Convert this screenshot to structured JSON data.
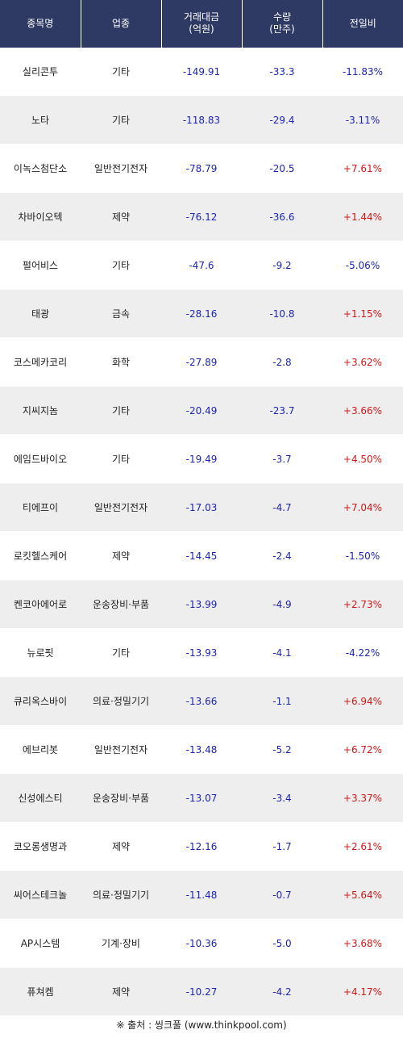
{
  "header": {
    "col_name": "종목명",
    "col_sector": "업종",
    "col_amount_line1": "거래대금",
    "col_amount_line2": "(억원)",
    "col_volume_line1": "수량",
    "col_volume_line2": "(만주)",
    "col_change": "전일비"
  },
  "rows": [
    {
      "name": "실리콘투",
      "sector": "기타",
      "amount": "-149.91",
      "volume": "-33.3",
      "change": "-11.83%",
      "direction": "down"
    },
    {
      "name": "노타",
      "sector": "기타",
      "amount": "-118.83",
      "volume": "-29.4",
      "change": "-3.11%",
      "direction": "down"
    },
    {
      "name": "이녹스첨단소",
      "sector": "일반전기전자",
      "amount": "-78.79",
      "volume": "-20.5",
      "change": "+7.61%",
      "direction": "up"
    },
    {
      "name": "차바이오텍",
      "sector": "제약",
      "amount": "-76.12",
      "volume": "-36.6",
      "change": "+1.44%",
      "direction": "up"
    },
    {
      "name": "펄어비스",
      "sector": "기타",
      "amount": "-47.6",
      "volume": "-9.2",
      "change": "-5.06%",
      "direction": "down"
    },
    {
      "name": "태광",
      "sector": "금속",
      "amount": "-28.16",
      "volume": "-10.8",
      "change": "+1.15%",
      "direction": "up"
    },
    {
      "name": "코스메카코리",
      "sector": "화학",
      "amount": "-27.89",
      "volume": "-2.8",
      "change": "+3.62%",
      "direction": "up"
    },
    {
      "name": "지씨지놈",
      "sector": "기타",
      "amount": "-20.49",
      "volume": "-23.7",
      "change": "+3.66%",
      "direction": "up"
    },
    {
      "name": "에임드바이오",
      "sector": "기타",
      "amount": "-19.49",
      "volume": "-3.7",
      "change": "+4.50%",
      "direction": "up"
    },
    {
      "name": "티에프이",
      "sector": "일반전기전자",
      "amount": "-17.03",
      "volume": "-4.7",
      "change": "+7.04%",
      "direction": "up"
    },
    {
      "name": "로킷헬스케어",
      "sector": "제약",
      "amount": "-14.45",
      "volume": "-2.4",
      "change": "-1.50%",
      "direction": "down"
    },
    {
      "name": "켄코아에어로",
      "sector": "운송장비·부품",
      "amount": "-13.99",
      "volume": "-4.9",
      "change": "+2.73%",
      "direction": "up"
    },
    {
      "name": "뉴로핏",
      "sector": "기타",
      "amount": "-13.93",
      "volume": "-4.1",
      "change": "-4.22%",
      "direction": "down"
    },
    {
      "name": "큐리옥스바이",
      "sector": "의료·정밀기기",
      "amount": "-13.66",
      "volume": "-1.1",
      "change": "+6.94%",
      "direction": "up"
    },
    {
      "name": "에브리봇",
      "sector": "일반전기전자",
      "amount": "-13.48",
      "volume": "-5.2",
      "change": "+6.72%",
      "direction": "up"
    },
    {
      "name": "신성에스티",
      "sector": "운송장비·부품",
      "amount": "-13.07",
      "volume": "-3.4",
      "change": "+3.37%",
      "direction": "up"
    },
    {
      "name": "코오롱생명과",
      "sector": "제약",
      "amount": "-12.16",
      "volume": "-1.7",
      "change": "+2.61%",
      "direction": "up"
    },
    {
      "name": "씨어스테크놀",
      "sector": "의료·정밀기기",
      "amount": "-11.48",
      "volume": "-0.7",
      "change": "+5.64%",
      "direction": "up"
    },
    {
      "name": "AP시스템",
      "sector": "기계·장비",
      "amount": "-10.36",
      "volume": "-5.0",
      "change": "+3.68%",
      "direction": "up"
    },
    {
      "name": "퓨쳐켐",
      "sector": "제약",
      "amount": "-10.27",
      "volume": "-4.2",
      "change": "+4.17%",
      "direction": "up"
    }
  ],
  "footer": {
    "source": "※ 출처 : 씽크풀 (www.thinkpool.com)"
  },
  "colors": {
    "header_bg": "#2e3a63",
    "negative": "#1d24b4",
    "positive": "#d01818",
    "row_alt": "#eeeeee"
  }
}
